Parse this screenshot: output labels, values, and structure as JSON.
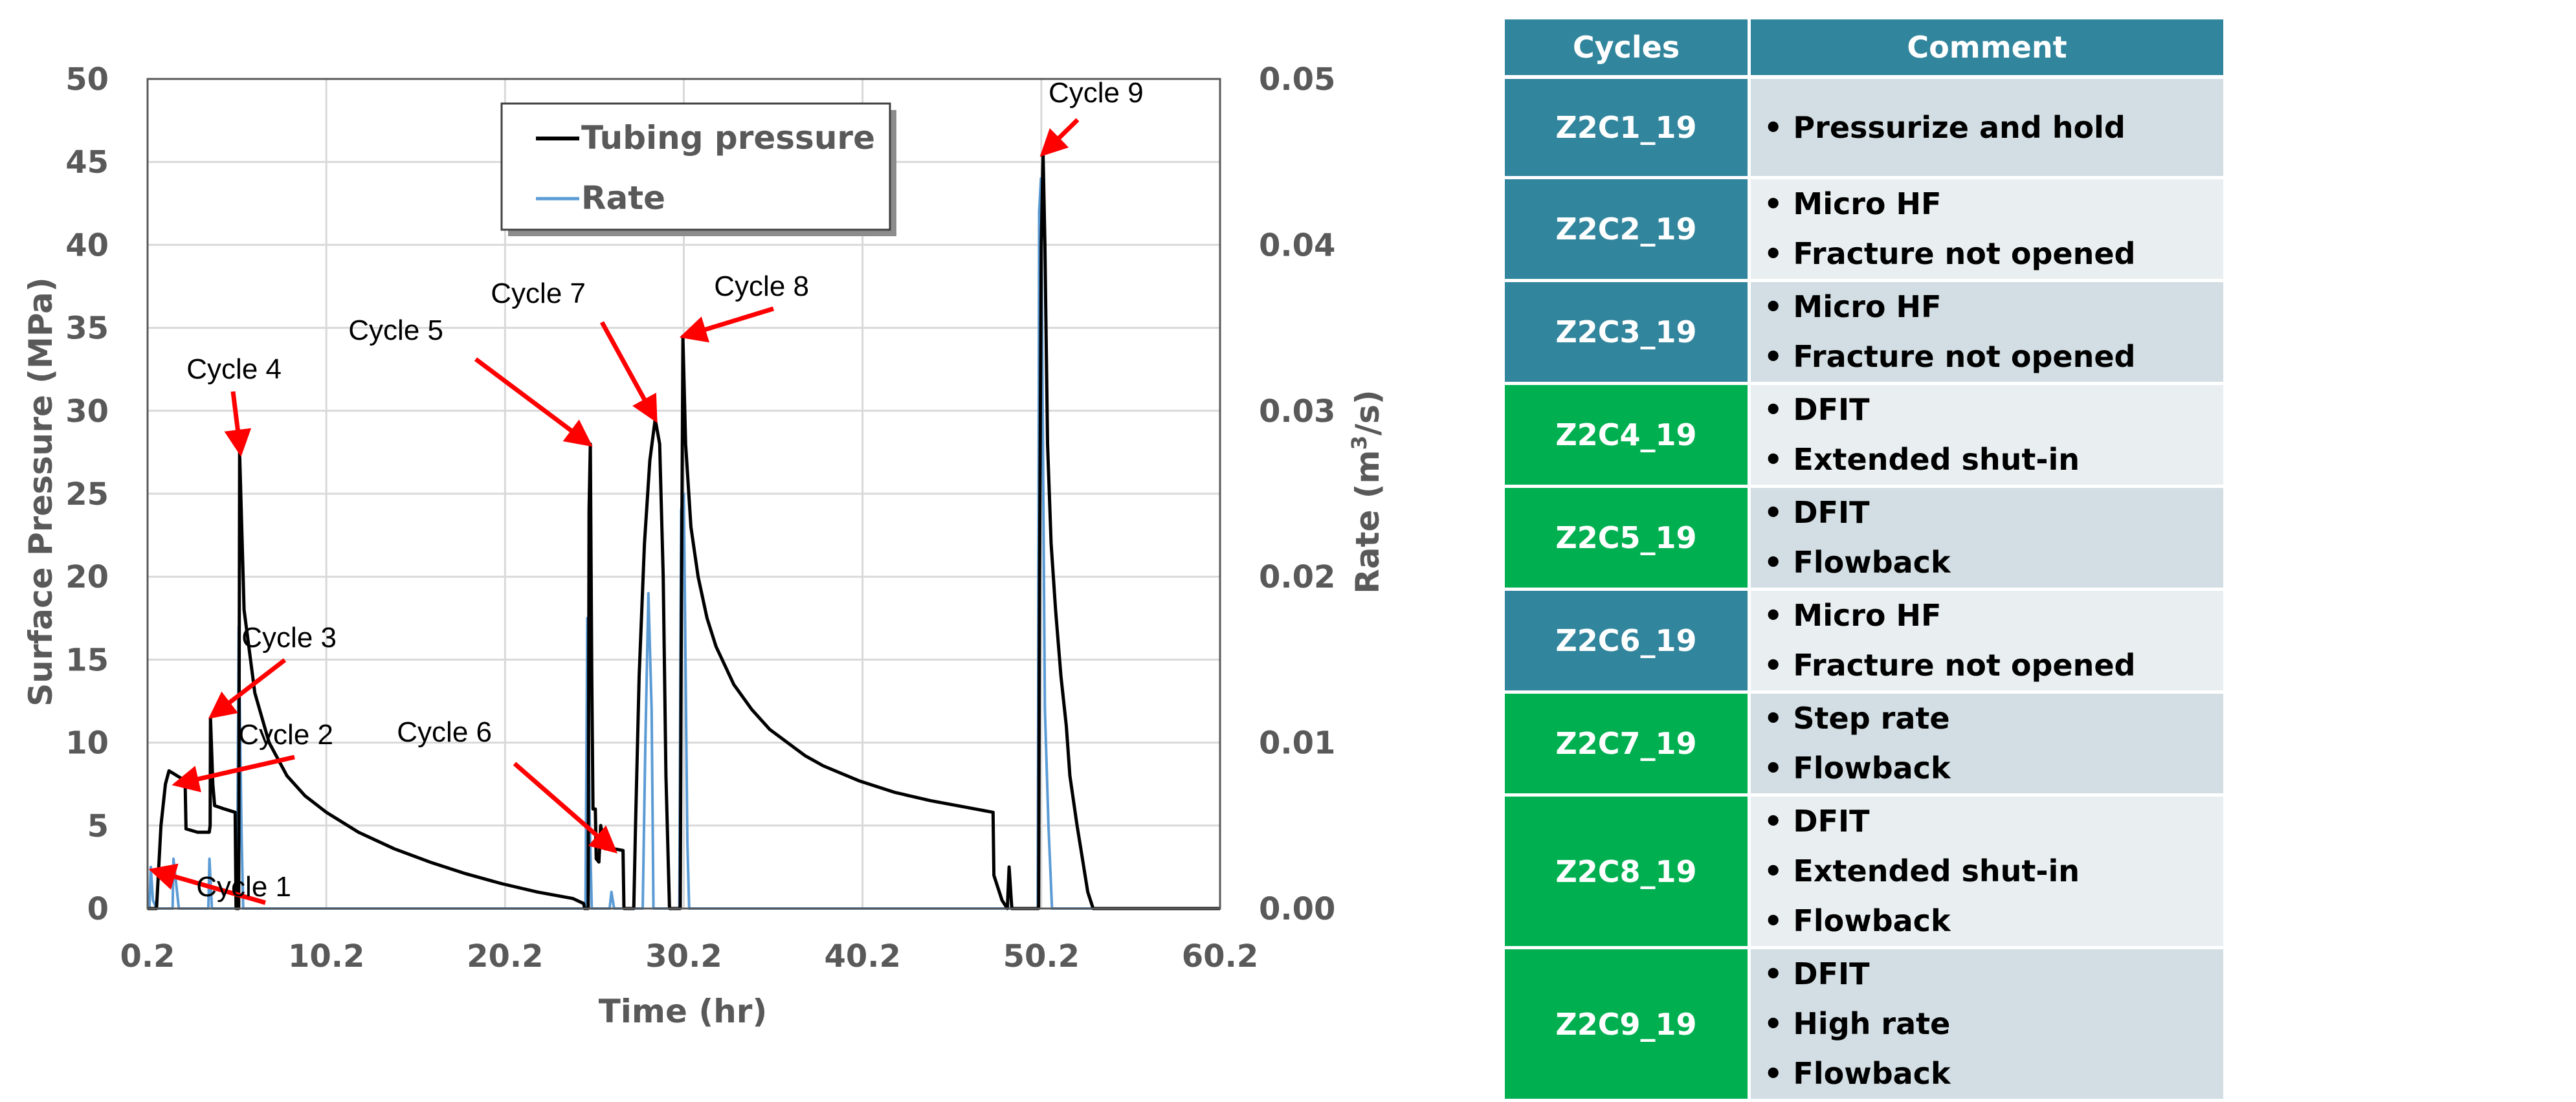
{
  "chart_data": {
    "type": "line",
    "title": "",
    "xlabel": "Time (hr)",
    "ylabel": "Surface Pressure (MPa)",
    "y2label_prefix": "Rate (m",
    "y2label_sup": "3",
    "y2label_suffix": "/s)",
    "xlim": [
      0.2,
      60.2
    ],
    "ylim": [
      0,
      50
    ],
    "y2lim": [
      0,
      0.05
    ],
    "x_ticks": [
      "0.2",
      "10.2",
      "20.2",
      "30.2",
      "40.2",
      "50.2",
      "60.2"
    ],
    "y_ticks": [
      "0",
      "5",
      "10",
      "15",
      "20",
      "25",
      "30",
      "35",
      "40",
      "45",
      "50"
    ],
    "y2_ticks": [
      "0.00",
      "0.01",
      "0.02",
      "0.03",
      "0.04",
      "0.05"
    ],
    "grid": true,
    "legend_position": "top-center",
    "colors": {
      "pressure": "#000000",
      "rate": "#5b9bd5",
      "arrow": "#ff0000",
      "grid": "#d9d9d9",
      "axis_text": "#595959"
    },
    "series": [
      {
        "name": "Tubing pressure",
        "axis": "left",
        "points": [
          [
            0.2,
            0
          ],
          [
            0.7,
            0
          ],
          [
            0.95,
            5
          ],
          [
            1.2,
            7.5
          ],
          [
            1.4,
            8.3
          ],
          [
            1.7,
            8.1
          ],
          [
            2.0,
            7.9
          ],
          [
            2.3,
            7.7
          ],
          [
            2.35,
            4.8
          ],
          [
            3.0,
            4.6
          ],
          [
            3.65,
            4.6
          ],
          [
            3.7,
            5
          ],
          [
            3.72,
            11.5
          ],
          [
            3.85,
            7.5
          ],
          [
            3.95,
            6.2
          ],
          [
            4.5,
            6.0
          ],
          [
            5.1,
            5.8
          ],
          [
            5.15,
            0
          ],
          [
            5.3,
            0
          ],
          [
            5.35,
            27.5
          ],
          [
            5.6,
            18
          ],
          [
            6.2,
            13
          ],
          [
            7,
            10
          ],
          [
            8,
            8
          ],
          [
            9,
            6.8
          ],
          [
            10.2,
            5.8
          ],
          [
            12,
            4.6
          ],
          [
            14,
            3.6
          ],
          [
            16,
            2.8
          ],
          [
            18,
            2.1
          ],
          [
            20,
            1.5
          ],
          [
            22,
            1.0
          ],
          [
            24,
            0.6
          ],
          [
            24.6,
            0.3
          ],
          [
            24.65,
            0
          ],
          [
            24.85,
            0
          ],
          [
            24.9,
            24
          ],
          [
            24.97,
            28
          ],
          [
            25.05,
            14
          ],
          [
            25.12,
            6
          ],
          [
            25.25,
            6
          ],
          [
            25.3,
            3
          ],
          [
            25.45,
            2.8
          ],
          [
            25.55,
            5
          ],
          [
            25.8,
            3.6
          ],
          [
            26.3,
            3.6
          ],
          [
            26.8,
            3.5
          ],
          [
            26.85,
            0
          ],
          [
            27.4,
            0
          ],
          [
            27.5,
            5
          ],
          [
            27.7,
            14
          ],
          [
            28.0,
            22
          ],
          [
            28.3,
            27
          ],
          [
            28.6,
            29.5
          ],
          [
            28.85,
            28
          ],
          [
            29.05,
            20
          ],
          [
            29.2,
            8
          ],
          [
            29.4,
            0
          ],
          [
            30.0,
            0
          ],
          [
            30.05,
            15
          ],
          [
            30.15,
            34.5
          ],
          [
            30.3,
            28
          ],
          [
            30.6,
            23
          ],
          [
            31,
            20
          ],
          [
            31.5,
            17.5
          ],
          [
            32,
            15.8
          ],
          [
            33,
            13.5
          ],
          [
            34,
            12
          ],
          [
            35,
            10.8
          ],
          [
            36,
            10
          ],
          [
            37,
            9.2
          ],
          [
            38,
            8.6
          ],
          [
            40,
            7.7
          ],
          [
            42,
            7.0
          ],
          [
            44,
            6.5
          ],
          [
            46,
            6.1
          ],
          [
            47.5,
            5.8
          ],
          [
            47.55,
            2.0
          ],
          [
            48.0,
            0.5
          ],
          [
            48.3,
            0
          ],
          [
            48.4,
            2.5
          ],
          [
            48.55,
            0
          ],
          [
            50.05,
            0
          ],
          [
            50.1,
            20
          ],
          [
            50.2,
            40
          ],
          [
            50.3,
            45.5
          ],
          [
            50.4,
            40
          ],
          [
            50.55,
            28
          ],
          [
            50.75,
            22
          ],
          [
            51.0,
            18
          ],
          [
            51.3,
            14
          ],
          [
            51.6,
            11
          ],
          [
            51.8,
            8
          ],
          [
            52.2,
            5
          ],
          [
            52.5,
            3
          ],
          [
            52.8,
            1
          ],
          [
            53.1,
            0
          ],
          [
            60.2,
            0
          ]
        ]
      },
      {
        "name": "Rate",
        "axis": "right",
        "points": [
          [
            0.2,
            0
          ],
          [
            0.3,
            0
          ],
          [
            0.38,
            0.0025
          ],
          [
            0.5,
            0.0005
          ],
          [
            0.7,
            0
          ],
          [
            1.6,
            0
          ],
          [
            1.65,
            0.003
          ],
          [
            1.8,
            0.0015
          ],
          [
            1.95,
            0
          ],
          [
            3.6,
            0
          ],
          [
            3.66,
            0.003
          ],
          [
            3.8,
            0
          ],
          [
            5.2,
            0
          ],
          [
            5.3,
            0.017
          ],
          [
            5.45,
            0.005
          ],
          [
            5.55,
            0
          ],
          [
            24.7,
            0
          ],
          [
            24.8,
            0.0175
          ],
          [
            24.92,
            0.006
          ],
          [
            25.05,
            0
          ],
          [
            26.05,
            0
          ],
          [
            26.15,
            0.001
          ],
          [
            26.3,
            0
          ],
          [
            27.9,
            0
          ],
          [
            28.05,
            0.01
          ],
          [
            28.22,
            0.019
          ],
          [
            28.4,
            0.012
          ],
          [
            28.5,
            0
          ],
          [
            29.95,
            0
          ],
          [
            30.05,
            0.024
          ],
          [
            30.2,
            0.025
          ],
          [
            30.4,
            0.004
          ],
          [
            30.5,
            0
          ],
          [
            50.0,
            0
          ],
          [
            50.08,
            0.042
          ],
          [
            50.18,
            0.044
          ],
          [
            50.28,
            0.03
          ],
          [
            50.4,
            0.012
          ],
          [
            50.6,
            0.005
          ],
          [
            50.8,
            0
          ],
          [
            60.2,
            0
          ]
        ]
      }
    ],
    "annotations": [
      {
        "text": "Cycle 1",
        "target": [
          0.5,
          2.3
        ]
      },
      {
        "text": "Cycle 2",
        "target": [
          1.8,
          7.5
        ]
      },
      {
        "text": "Cycle 3",
        "target": [
          3.8,
          11.6
        ]
      },
      {
        "text": "Cycle 4",
        "target": [
          5.4,
          27.5
        ]
      },
      {
        "text": "Cycle 5",
        "target": [
          24.9,
          28
        ]
      },
      {
        "text": "Cycle 6",
        "target": [
          26.3,
          3.5
        ]
      },
      {
        "text": "Cycle 7",
        "target": [
          28.6,
          29.5
        ]
      },
      {
        "text": "Cycle 8",
        "target": [
          30.2,
          34.5
        ]
      },
      {
        "text": "Cycle 9",
        "target": [
          50.3,
          45.5
        ]
      }
    ]
  },
  "table": {
    "header": {
      "cycles": "Cycles",
      "comment": "Comment"
    },
    "rows": [
      {
        "name": "Z2C1_19",
        "color": "blue",
        "comments": [
          "Pressurize and hold"
        ]
      },
      {
        "name": "Z2C2_19",
        "color": "blue",
        "comments": [
          "Micro HF",
          "Fracture not opened"
        ]
      },
      {
        "name": "Z2C3_19",
        "color": "blue",
        "comments": [
          "Micro HF",
          "Fracture not opened"
        ]
      },
      {
        "name": "Z2C4_19",
        "color": "green",
        "comments": [
          "DFIT",
          "Extended shut-in"
        ]
      },
      {
        "name": "Z2C5_19",
        "color": "green",
        "comments": [
          "DFIT",
          "Flowback"
        ]
      },
      {
        "name": "Z2C6_19",
        "color": "blue",
        "comments": [
          "Micro HF",
          "Fracture not opened"
        ]
      },
      {
        "name": "Z2C7_19",
        "color": "green",
        "comments": [
          "Step rate",
          "Flowback"
        ]
      },
      {
        "name": "Z2C8_19",
        "color": "green",
        "comments": [
          "DFIT",
          "Extended shut-in",
          "Flowback"
        ]
      },
      {
        "name": "Z2C9_19",
        "color": "green",
        "comments": [
          "DFIT",
          "High rate",
          "Flowback"
        ]
      }
    ]
  }
}
